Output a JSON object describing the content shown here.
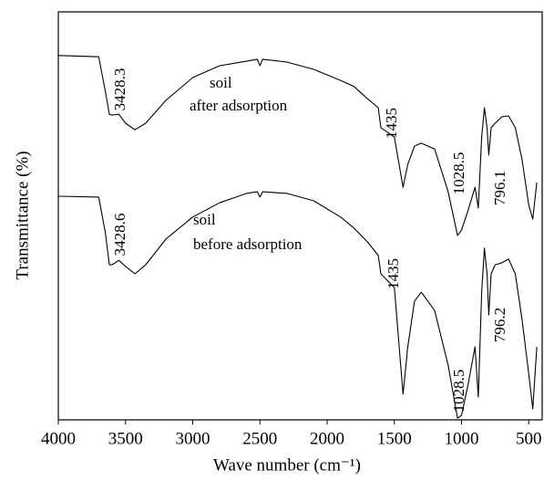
{
  "chart_data": {
    "type": "line",
    "ylabel": "Transmittance (%)",
    "xlabel": "Wave number (cm⁻¹)",
    "xlim": [
      4000,
      400
    ],
    "xticks": [
      4000,
      3500,
      3000,
      2500,
      2000,
      1500,
      1000,
      500
    ],
    "ylim": [
      0,
      100
    ],
    "x": [
      4000,
      3700,
      3650,
      3620,
      3600,
      3550,
      3500,
      3430,
      3350,
      3200,
      3000,
      2800,
      2600,
      2520,
      2500,
      2480,
      2300,
      2100,
      1900,
      1800,
      1700,
      1620,
      1600,
      1500,
      1435,
      1400,
      1350,
      1300,
      1200,
      1100,
      1030,
      1000,
      950,
      900,
      875,
      850,
      830,
      810,
      797,
      780,
      750,
      700,
      650,
      600,
      550,
      500,
      470,
      440
    ],
    "series": [
      {
        "color": "#000000",
        "values": [
          89.3,
          89.0,
          80.5,
          74.9,
          74.7,
          74.9,
          72.7,
          71.1,
          72.7,
          78.3,
          83.9,
          86.8,
          87.9,
          88.4,
          86.8,
          88.4,
          87.7,
          85.9,
          83.2,
          81.7,
          78.7,
          76.5,
          71.6,
          69.3,
          57.0,
          62.6,
          67.1,
          67.8,
          66.4,
          55.9,
          45.2,
          46.5,
          51.5,
          57.0,
          51.9,
          69.3,
          76.5,
          71.6,
          64.9,
          71.6,
          72.7,
          74.3,
          74.5,
          71.6,
          63.8,
          52.6,
          49.2,
          58.2
        ]
      },
      {
        "color": "#000000",
        "values": [
          54.8,
          54.6,
          45.9,
          38.0,
          38.0,
          39.1,
          37.6,
          35.8,
          38.0,
          44.3,
          49.7,
          53.2,
          55.5,
          55.9,
          54.6,
          55.9,
          55.5,
          53.7,
          49.7,
          47.0,
          43.6,
          40.3,
          35.8,
          32.4,
          6.3,
          17.9,
          29.1,
          31.3,
          26.8,
          13.4,
          0.4,
          1.1,
          8.9,
          17.9,
          5.6,
          31.3,
          42.1,
          35.8,
          25.7,
          35.8,
          38.0,
          38.5,
          39.4,
          35.8,
          24.6,
          11.2,
          2.7,
          17.9
        ]
      }
    ],
    "annotations": [
      "3428.3",
      "soil",
      "after adsorption",
      "1435",
      "1028.5",
      "796.1",
      "3428.6",
      "soil",
      "before adsorption",
      "1435",
      "1028.5",
      "796.2"
    ]
  }
}
